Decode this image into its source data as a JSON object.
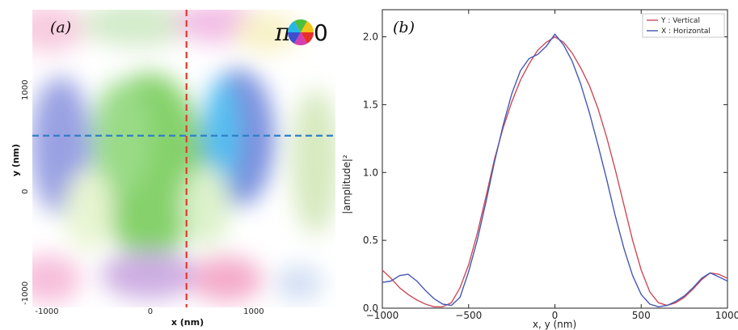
{
  "chart_data": [
    {
      "type": "heatmap",
      "panel_label": "(a)",
      "xlabel": "x (nm)",
      "ylabel": "y (nm)",
      "x_ticks": [
        "-1000",
        "0",
        "1000"
      ],
      "x_tick_values": [
        -1000,
        0,
        1000
      ],
      "y_ticks": [
        "1000",
        "0",
        "-1000"
      ],
      "y_tick_values": [
        1000,
        0,
        -1000
      ],
      "xlim": [
        -1140,
        1790
      ],
      "ylim": [
        -1140,
        1790
      ],
      "colorwheel_labels": {
        "left": "π",
        "right": "0"
      },
      "crosshair": {
        "vertical_x": 350,
        "horizontal_y": 550
      },
      "colors": {
        "vertical_line": "#e8382a",
        "horizontal_line": "#2f7fc6"
      }
    },
    {
      "type": "line",
      "panel_label": "(b)",
      "xlabel": "x, y (nm)",
      "ylabel": "|amplitude|²",
      "xlim": [
        -1000,
        1000
      ],
      "ylim": [
        0,
        2.2
      ],
      "x_ticks": [
        "−1000",
        "−500",
        "0",
        "500",
        "1000"
      ],
      "x_tick_values": [
        -1000,
        -500,
        0,
        500,
        1000
      ],
      "y_ticks": [
        "0.0",
        "0.5",
        "1.0",
        "1.5",
        "2.0"
      ],
      "y_tick_values": [
        0,
        0.5,
        1.0,
        1.5,
        2.0
      ],
      "legend_position": "top-right",
      "series": [
        {
          "name": "Y : Vertical",
          "color": "#cc4b57",
          "x": [
            -1000,
            -950,
            -900,
            -850,
            -800,
            -750,
            -700,
            -650,
            -600,
            -550,
            -500,
            -450,
            -400,
            -350,
            -300,
            -250,
            -200,
            -150,
            -100,
            -50,
            0,
            50,
            100,
            150,
            200,
            250,
            300,
            350,
            400,
            450,
            500,
            550,
            600,
            650,
            700,
            750,
            800,
            850,
            900,
            950,
            1000
          ],
          "y": [
            0.28,
            0.22,
            0.15,
            0.1,
            0.06,
            0.03,
            0.01,
            0.01,
            0.04,
            0.15,
            0.32,
            0.55,
            0.82,
            1.1,
            1.33,
            1.52,
            1.68,
            1.8,
            1.9,
            1.96,
            2.0,
            1.96,
            1.88,
            1.77,
            1.64,
            1.47,
            1.26,
            1.02,
            0.76,
            0.5,
            0.28,
            0.12,
            0.04,
            0.02,
            0.04,
            0.08,
            0.14,
            0.21,
            0.26,
            0.25,
            0.22
          ]
        },
        {
          "name": "X : Horizontal",
          "color": "#4558b4",
          "x": [
            -1000,
            -950,
            -900,
            -850,
            -800,
            -750,
            -700,
            -650,
            -600,
            -550,
            -500,
            -450,
            -400,
            -350,
            -300,
            -250,
            -200,
            -150,
            -100,
            -50,
            0,
            50,
            100,
            150,
            200,
            250,
            300,
            350,
            400,
            450,
            500,
            550,
            600,
            650,
            700,
            750,
            800,
            850,
            900,
            950,
            1000
          ],
          "y": [
            0.19,
            0.2,
            0.24,
            0.25,
            0.2,
            0.13,
            0.07,
            0.03,
            0.02,
            0.08,
            0.27,
            0.5,
            0.78,
            1.08,
            1.35,
            1.58,
            1.75,
            1.84,
            1.87,
            1.93,
            2.02,
            1.94,
            1.82,
            1.65,
            1.44,
            1.2,
            0.95,
            0.68,
            0.44,
            0.24,
            0.1,
            0.03,
            0.01,
            0.02,
            0.05,
            0.09,
            0.15,
            0.22,
            0.26,
            0.23,
            0.2
          ]
        }
      ]
    }
  ]
}
